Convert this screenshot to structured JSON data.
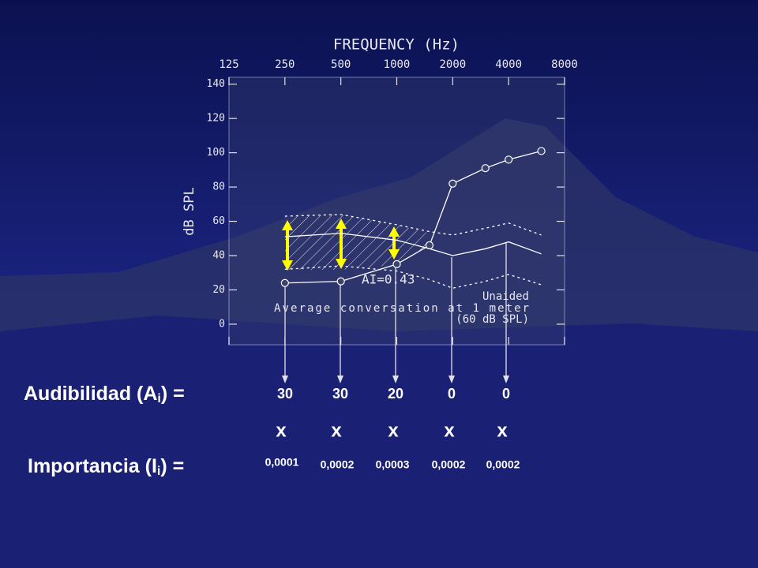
{
  "chart_data": {
    "type": "line",
    "title": "FREQUENCY (Hz)",
    "y_label": "dB SPL",
    "x": [
      250,
      500,
      1000,
      1500,
      2000,
      3000,
      4000,
      6000
    ],
    "xlim": [
      125,
      8000
    ],
    "xticks": [
      125,
      250,
      500,
      1000,
      2000,
      4000,
      8000
    ],
    "x_log": true,
    "ylim": [
      -12,
      144
    ],
    "yticks": [
      0,
      20,
      40,
      60,
      80,
      100,
      120,
      140
    ],
    "series": [
      {
        "color": "#ffffff",
        "style": "solid",
        "markers": true,
        "values": [
          24,
          25,
          35,
          46,
          82,
          91,
          96,
          101
        ]
      },
      {
        "color": "#ffffff",
        "style": "dotted",
        "markers": false,
        "values": [
          63,
          64,
          58,
          54,
          52,
          56,
          59,
          52
        ]
      },
      {
        "color": "#ffffff",
        "style": "solid",
        "markers": false,
        "values": [
          51,
          53,
          49,
          44,
          40,
          44,
          48,
          41
        ]
      },
      {
        "color": "#ffffff",
        "style": "dotted",
        "markers": false,
        "values": [
          32,
          34,
          31,
          26,
          21,
          25,
          29,
          23
        ]
      }
    ],
    "annotations": [
      "AI=0.43",
      "Average conversation at 1 meter",
      "Unaided",
      "(60 dB SPL)"
    ]
  },
  "audibility": {
    "label": "Audibilidad (A",
    "subscript": "i",
    "label_end": ") =",
    "values": [
      30,
      30,
      20,
      0,
      0
    ]
  },
  "multipliers": [
    "x",
    "x",
    "x",
    "x",
    "x"
  ],
  "importance": {
    "label": "Importancia (I",
    "subscript": "i",
    "label_end": ") =",
    "values": [
      "0,0001",
      "0,0002",
      "0,0003",
      "0,0002",
      "0,0002"
    ]
  }
}
